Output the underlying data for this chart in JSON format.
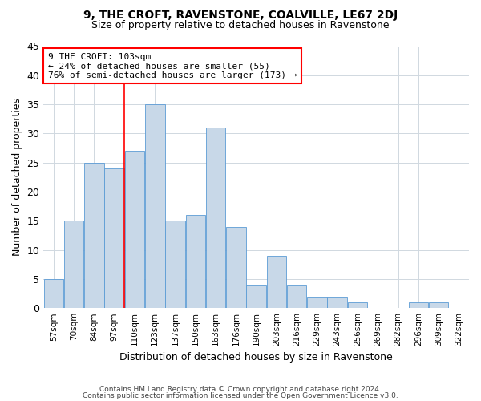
{
  "title": "9, THE CROFT, RAVENSTONE, COALVILLE, LE67 2DJ",
  "subtitle": "Size of property relative to detached houses in Ravenstone",
  "xlabel": "Distribution of detached houses by size in Ravenstone",
  "ylabel": "Number of detached properties",
  "bin_labels": [
    "57sqm",
    "70sqm",
    "84sqm",
    "97sqm",
    "110sqm",
    "123sqm",
    "137sqm",
    "150sqm",
    "163sqm",
    "176sqm",
    "190sqm",
    "203sqm",
    "216sqm",
    "229sqm",
    "243sqm",
    "256sqm",
    "269sqm",
    "282sqm",
    "296sqm",
    "309sqm",
    "322sqm"
  ],
  "bar_values": [
    5,
    15,
    25,
    24,
    27,
    35,
    15,
    16,
    31,
    14,
    4,
    9,
    4,
    2,
    2,
    1,
    0,
    0,
    1,
    1,
    0
  ],
  "bar_color": "#c8d8e8",
  "bar_edgecolor": "#5b9bd5",
  "vline_x": 3.5,
  "annotation_text": "9 THE CROFT: 103sqm\n← 24% of detached houses are smaller (55)\n76% of semi-detached houses are larger (173) →",
  "ylim": [
    0,
    45
  ],
  "yticks": [
    0,
    5,
    10,
    15,
    20,
    25,
    30,
    35,
    40,
    45
  ],
  "footer_line1": "Contains HM Land Registry data © Crown copyright and database right 2024.",
  "footer_line2": "Contains public sector information licensed under the Open Government Licence v3.0.",
  "background_color": "#ffffff",
  "grid_color": "#d0d8e0"
}
